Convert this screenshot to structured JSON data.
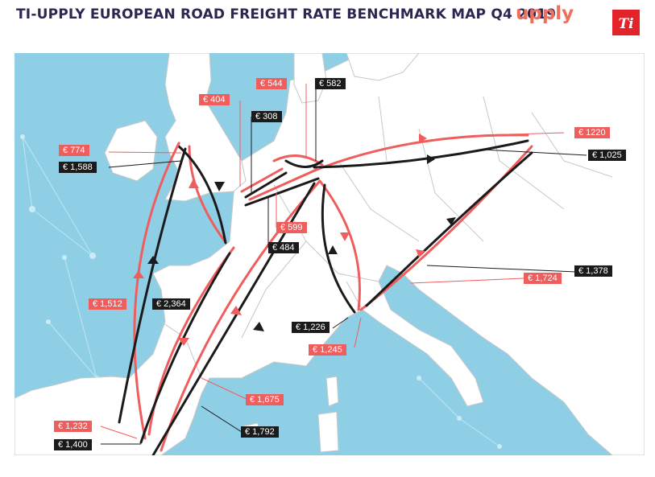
{
  "title": "TI-UPPLY EUROPEAN ROAD FREIGHT RATE BENCHMARK MAP Q4 2019",
  "logos": {
    "upply": "upply",
    "ti": "Ti"
  },
  "colors": {
    "sea": "#8fcfe6",
    "land": "#ffffff",
    "border": "#c7c7c7",
    "red": "#ef5d5d",
    "black": "#1b1b1b",
    "title": "#2d2651",
    "upply": "#ef6f5c",
    "ti": "#e2232a"
  },
  "rates": {
    "r544": "€ 544",
    "r582": "€ 582",
    "r404": "€ 404",
    "r308": "€ 308",
    "r774": "€ 774",
    "r1588": "€ 1,588",
    "r1220": "€ 1220",
    "r1025": "€ 1,025",
    "r599": "€ 599",
    "r484": "€ 484",
    "r1378": "€ 1,378",
    "r1724": "€ 1,724",
    "r1512": "€ 1,512",
    "r2364": "€ 2,364",
    "r1226": "€ 1,226",
    "r1245": "€ 1,245",
    "r1675": "€ 1,675",
    "r1232": "€ 1,232",
    "r1792": "€ 1,792",
    "r1400": "€ 1,400"
  }
}
